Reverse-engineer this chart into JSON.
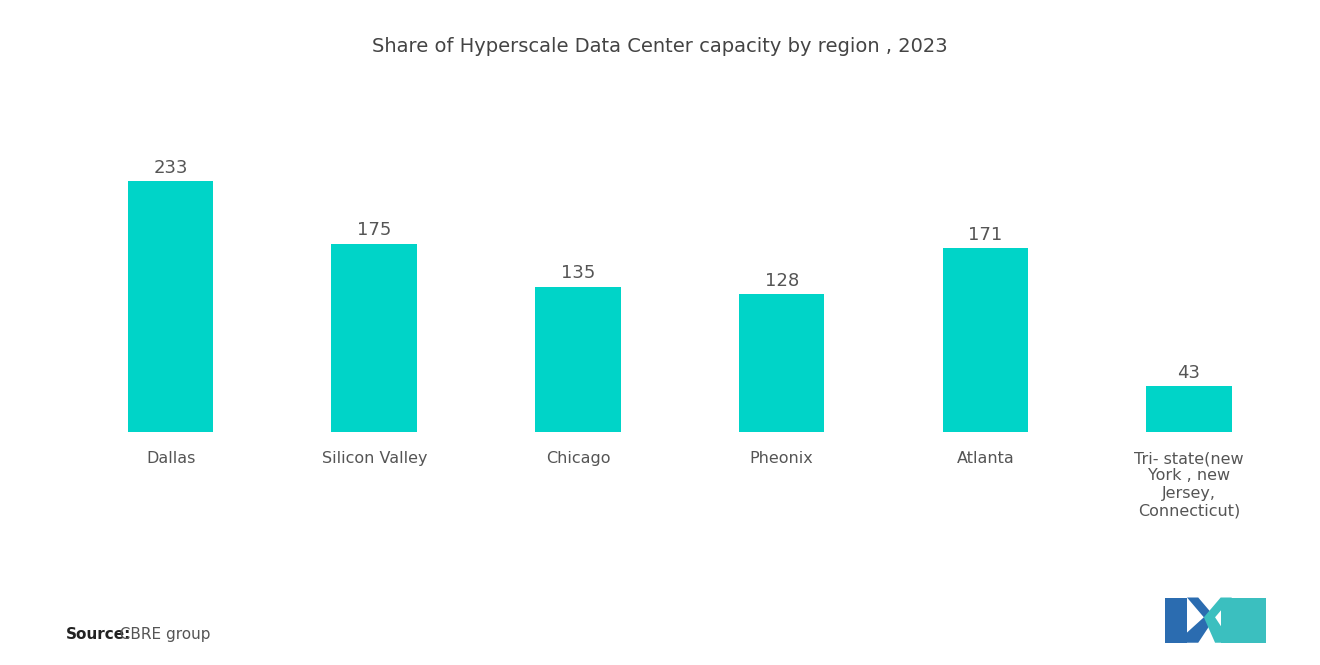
{
  "title": "Share of Hyperscale Data Center capacity by region , 2023",
  "categories": [
    "Dallas",
    "Silicon Valley",
    "Chicago",
    "Pheonix",
    "Atlanta",
    "Tri- state(new\nYork , new\nJersey,\nConnecticut)"
  ],
  "values": [
    233,
    175,
    135,
    128,
    171,
    43
  ],
  "bar_color": "#00D4C8",
  "value_color": "#555555",
  "title_color": "#444444",
  "label_color": "#555555",
  "background_color": "#ffffff",
  "source_label": "Source:",
  "source_value": "  CBRE group",
  "title_fontsize": 14,
  "label_fontsize": 11.5,
  "value_fontsize": 13,
  "source_fontsize": 11,
  "ylim": [
    0,
    290
  ],
  "bar_width": 0.42,
  "logo_blue": "#2B6CB0",
  "logo_teal": "#3BBFBF"
}
